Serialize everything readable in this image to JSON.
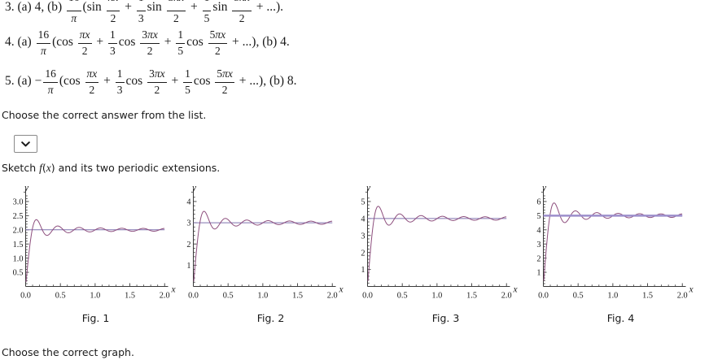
{
  "prompts": {
    "choose_answer": "Choose the correct answer from the list.",
    "choose_graph": "Choose the correct graph.",
    "sketch_tokens": [
      {
        "t": "Sketch "
      },
      {
        "t": "f",
        "i": 1
      },
      {
        "t": "("
      },
      {
        "t": "x",
        "i": 1
      },
      {
        "t": ") and its two periodic extensions."
      }
    ]
  },
  "dropdown": {
    "selected_value": "",
    "icon": "chevron-down"
  },
  "answers": {
    "line3": {
      "tokens": [
        {
          "t": "3. (a) 4, (b)  "
        },
        {
          "f": {
            "n": [
              [
                "16",
                0
              ]
            ],
            "d": [
              [
                "π",
                1
              ]
            ]
          }
        },
        {
          "t": "(sin "
        },
        {
          "f": {
            "n": [
              [
                "πx",
                1
              ]
            ],
            "d": [
              [
                "2",
                0
              ]
            ]
          }
        },
        {
          "t": " + "
        },
        {
          "f": {
            "n": [
              [
                "1",
                0
              ]
            ],
            "d": [
              [
                "3",
                0
              ]
            ]
          }
        },
        {
          "t": "sin "
        },
        {
          "f": {
            "n": [
              [
                "3",
                0
              ],
              [
                "πx",
                1
              ]
            ],
            "d": [
              [
                "2",
                0
              ]
            ]
          }
        },
        {
          "t": " + "
        },
        {
          "f": {
            "n": [
              [
                "1",
                0
              ]
            ],
            "d": [
              [
                "5",
                0
              ]
            ]
          }
        },
        {
          "t": "sin "
        },
        {
          "f": {
            "n": [
              [
                "5",
                0
              ],
              [
                "πx",
                1
              ]
            ],
            "d": [
              [
                "2",
                0
              ]
            ]
          }
        },
        {
          "t": " + ...)."
        }
      ]
    },
    "line4": {
      "tokens": [
        {
          "t": "4. (a) "
        },
        {
          "f": {
            "n": [
              [
                "16",
                0
              ]
            ],
            "d": [
              [
                "π",
                1
              ]
            ]
          }
        },
        {
          "t": "(cos "
        },
        {
          "f": {
            "n": [
              [
                "πx",
                1
              ]
            ],
            "d": [
              [
                "2",
                0
              ]
            ]
          }
        },
        {
          "t": " + "
        },
        {
          "f": {
            "n": [
              [
                "1",
                0
              ]
            ],
            "d": [
              [
                "3",
                0
              ]
            ]
          }
        },
        {
          "t": "cos "
        },
        {
          "f": {
            "n": [
              [
                "3",
                0
              ],
              [
                "πx",
                1
              ]
            ],
            "d": [
              [
                "2",
                0
              ]
            ]
          }
        },
        {
          "t": " + "
        },
        {
          "f": {
            "n": [
              [
                "1",
                0
              ]
            ],
            "d": [
              [
                "5",
                0
              ]
            ]
          }
        },
        {
          "t": "cos "
        },
        {
          "f": {
            "n": [
              [
                "5",
                0
              ],
              [
                "πx",
                1
              ]
            ],
            "d": [
              [
                "2",
                0
              ]
            ]
          }
        },
        {
          "t": " + ...), (b) 4."
        }
      ]
    },
    "line5": {
      "tokens": [
        {
          "t": "5. (a) −"
        },
        {
          "f": {
            "n": [
              [
                "16",
                0
              ]
            ],
            "d": [
              [
                "π",
                1
              ]
            ]
          }
        },
        {
          "t": "(cos "
        },
        {
          "f": {
            "n": [
              [
                "πx",
                1
              ]
            ],
            "d": [
              [
                "2",
                0
              ]
            ]
          }
        },
        {
          "t": " + "
        },
        {
          "f": {
            "n": [
              [
                "1",
                0
              ]
            ],
            "d": [
              [
                "3",
                0
              ]
            ]
          }
        },
        {
          "t": "cos "
        },
        {
          "f": {
            "n": [
              [
                "3",
                0
              ],
              [
                "πx",
                1
              ]
            ],
            "d": [
              [
                "2",
                0
              ]
            ]
          }
        },
        {
          "t": " + "
        },
        {
          "f": {
            "n": [
              [
                "1",
                0
              ]
            ],
            "d": [
              [
                "5",
                0
              ]
            ]
          }
        },
        {
          "t": "cos "
        },
        {
          "f": {
            "n": [
              [
                "5",
                0
              ],
              [
                "πx",
                1
              ]
            ],
            "d": [
              [
                "2",
                0
              ]
            ]
          }
        },
        {
          "t": " + ...), (b) 8."
        }
      ]
    }
  },
  "style": {
    "axis_color": "#3a3a3a",
    "curve_color": "#8d4e7d",
    "flat_color": "#7f70ad",
    "flat_color_thick": "#9c8ecb"
  },
  "chart_data": [
    {
      "type": "line",
      "caption": "Fig. 1",
      "xlabel": "x",
      "ylabel": "y",
      "xlim": [
        0,
        2.05
      ],
      "ylim": [
        0,
        3.3
      ],
      "x0": 21,
      "x_ticks": [
        0,
        0.5,
        1,
        1.5,
        2
      ],
      "x_tick_labels": [
        "0.0",
        "0.5",
        "1.0",
        "1.5",
        "2.0"
      ],
      "x_minor_step": 0.1,
      "y_ticks": [
        0.5,
        1,
        1.5,
        2,
        2.5,
        3
      ],
      "y_tick_labels": [
        "0.5",
        "1.0",
        "1.5",
        "2.0",
        "2.5",
        "3.0"
      ],
      "y_minor_step": 0.1,
      "flat_line": {
        "y": 2,
        "width": 1,
        "on_top": false
      },
      "curve": {
        "type": "fourier_square_partial_sum",
        "amplitude": 2,
        "harmonics_odd_max": 25,
        "half_period": 4,
        "width": 1
      },
      "converges_to": 2,
      "gibbs_peak": {
        "x": 0.15,
        "y": 2.36
      },
      "first_dip": {
        "x": 0.31,
        "y": 1.81
      },
      "description": "Partial Fourier sum oscillating about y=2, Gibbs overshoot near x=0"
    },
    {
      "type": "line",
      "caption": "Fig. 2",
      "xlabel": "x",
      "ylabel": "y",
      "xlim": [
        0,
        2.05
      ],
      "ylim": [
        0,
        4.4
      ],
      "x0": 12,
      "x_ticks": [
        0,
        0.5,
        1,
        1.5,
        2
      ],
      "x_tick_labels": [
        "0.0",
        "0.5",
        "1.0",
        "1.5",
        "2.0"
      ],
      "x_minor_step": 0.1,
      "y_ticks": [
        1,
        2,
        3,
        4
      ],
      "y_tick_labels": [
        "1",
        "2",
        "3",
        "4"
      ],
      "y_minor_step": 0.2,
      "flat_line": {
        "y": 3,
        "width": 1,
        "on_top": false
      },
      "curve": {
        "type": "fourier_square_partial_sum",
        "amplitude": 3,
        "harmonics_odd_max": 25,
        "half_period": 4,
        "width": 1
      },
      "converges_to": 3,
      "gibbs_peak": {
        "x": 0.15,
        "y": 3.54
      },
      "first_dip": {
        "x": 0.31,
        "y": 2.72
      },
      "description": "Partial Fourier sum oscillating about y=3, Gibbs overshoot near x=0"
    },
    {
      "type": "line",
      "caption": "Fig. 3",
      "xlabel": "x",
      "ylabel": "y",
      "xlim": [
        0,
        2.05
      ],
      "ylim": [
        0,
        5.5
      ],
      "x0": 11,
      "x_ticks": [
        0,
        0.5,
        1,
        1.5,
        2
      ],
      "x_tick_labels": [
        "0.0",
        "0.5",
        "1.0",
        "1.5",
        "2.0"
      ],
      "x_minor_step": 0.1,
      "y_ticks": [
        1,
        2,
        3,
        4,
        5
      ],
      "y_tick_labels": [
        "1",
        "2",
        "3",
        "4",
        "5"
      ],
      "y_minor_step": 0.2,
      "flat_line": {
        "y": 4,
        "width": 1,
        "on_top": false
      },
      "curve": {
        "type": "fourier_square_partial_sum",
        "amplitude": 4,
        "harmonics_odd_max": 25,
        "half_period": 4,
        "width": 1
      },
      "converges_to": 4,
      "gibbs_peak": {
        "x": 0.15,
        "y": 4.72
      },
      "first_dip": {
        "x": 0.31,
        "y": 3.62
      },
      "description": "Partial Fourier sum oscillating about y=4, Gibbs overshoot near x=0"
    },
    {
      "type": "line",
      "caption": "Fig. 4",
      "xlabel": "x",
      "ylabel": "y",
      "xlim": [
        0,
        2.05
      ],
      "ylim": [
        0,
        6.6
      ],
      "x0": 12,
      "x_ticks": [
        0,
        0.5,
        1,
        1.5,
        2
      ],
      "x_tick_labels": [
        "0.0",
        "0.5",
        "1.0",
        "1.5",
        "2.0"
      ],
      "x_minor_step": 0.1,
      "y_ticks": [
        1,
        2,
        3,
        4,
        5,
        6
      ],
      "y_tick_labels": [
        "1",
        "2",
        "3",
        "4",
        "5",
        "6"
      ],
      "y_minor_step": 0.2,
      "flat_line": {
        "y": 5,
        "width": 2.6,
        "on_top": true
      },
      "curve": {
        "type": "fourier_square_partial_sum",
        "amplitude": 5,
        "harmonics_odd_max": 25,
        "half_period": 4,
        "width": 1
      },
      "converges_to": 5,
      "gibbs_peak": {
        "x": 0.15,
        "y": 5.9
      },
      "first_dip": {
        "x": 0.31,
        "y": 4.53
      },
      "description": "Partial Fourier sum oscillating about y=5 with thick flat line at y=5"
    }
  ]
}
